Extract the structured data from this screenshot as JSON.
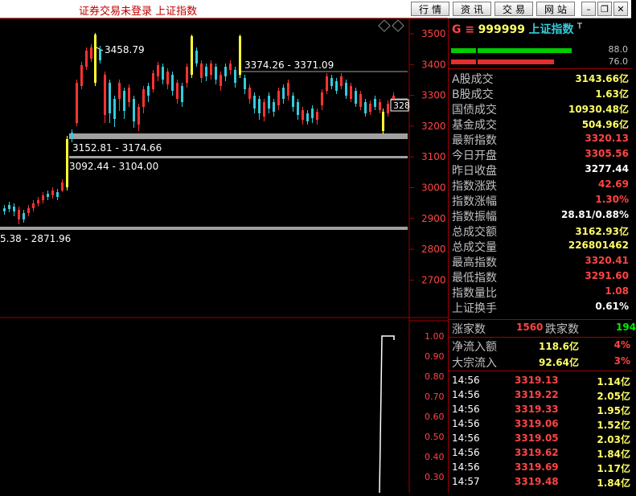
{
  "window": {
    "title": "证券交易未登录  上证指数",
    "buttons": [
      "行情",
      "资讯",
      "交易",
      "网站"
    ],
    "controls": [
      "minimize-icon",
      "restore-icon",
      "close-icon"
    ]
  },
  "chart": {
    "price_ticks": [
      "3500",
      "3400",
      "3300",
      "3200",
      "3100",
      "3000",
      "2900",
      "2800",
      "2700"
    ],
    "price_annotations": [
      "3458.79",
      "3374.26 - 3371.09",
      "3152.81 - 3174.66",
      "3092.44 - 3104.00",
      "5.38 - 2871.96"
    ],
    "current_price_label": "328",
    "indicator_ticks": [
      "1.00",
      "0.90",
      "0.80",
      "0.70",
      "0.60",
      "0.50",
      "0.40",
      "0.30"
    ],
    "colors": {
      "up": "#ff3333",
      "down": "#33ccdd",
      "highlight": "#ffff33",
      "band": "#a0a0a0",
      "axis": "#a00000"
    }
  },
  "quote": {
    "header_prefix": "G ≡",
    "code": "999999",
    "name": "上证指数",
    "tag": "T",
    "bar_values": [
      "88.0",
      "76.0"
    ],
    "stats": [
      {
        "label": "A股成交",
        "value": "3143.66亿",
        "color": "#ffff66"
      },
      {
        "label": "B股成交",
        "value": "1.63亿",
        "color": "#ffff66"
      },
      {
        "label": "国债成交",
        "value": "10930.48亿",
        "color": "#ffff66"
      },
      {
        "label": "基金成交",
        "value": "504.96亿",
        "color": "#ffff66"
      },
      {
        "label": "最新指数",
        "value": "3320.13",
        "color": "#ff4444"
      },
      {
        "label": "今日开盘",
        "value": "3305.56",
        "color": "#ff4444"
      },
      {
        "label": "昨日收盘",
        "value": "3277.44",
        "color": "#ffffff"
      },
      {
        "label": "指数涨跌",
        "value": "42.69",
        "color": "#ff4444"
      },
      {
        "label": "指数涨幅",
        "value": "1.30%",
        "color": "#ff4444"
      },
      {
        "label": "指数振幅",
        "value": "28.81/0.88%",
        "color": "#ffffff"
      },
      {
        "label": "总成交额",
        "value": "3162.93亿",
        "color": "#ffff66"
      },
      {
        "label": "总成交量",
        "value": "226801462",
        "color": "#ffff66"
      },
      {
        "label": "最高指数",
        "value": "3320.41",
        "color": "#ff4444"
      },
      {
        "label": "最低指数",
        "value": "3291.60",
        "color": "#ff4444"
      },
      {
        "label": "指数量比",
        "value": "1.08",
        "color": "#ff4444"
      },
      {
        "label": "上证换手",
        "value": "0.61%",
        "color": "#ffffff"
      }
    ],
    "breadth": {
      "up_label": "涨家数",
      "up_value": "1560",
      "down_label": "跌家数",
      "down_value": "194"
    },
    "flows": [
      {
        "label": "净流入额",
        "value": "118.6亿",
        "pct": "4%"
      },
      {
        "label": "大宗流入",
        "value": "92.64亿",
        "pct": "3%"
      }
    ],
    "ticks": [
      {
        "time": "14:56",
        "price": "3319.13",
        "vol": "1.14亿"
      },
      {
        "time": "14:56",
        "price": "3319.22",
        "vol": "2.05亿"
      },
      {
        "time": "14:56",
        "price": "3319.33",
        "vol": "1.95亿"
      },
      {
        "time": "14:56",
        "price": "3319.06",
        "vol": "1.52亿"
      },
      {
        "time": "14:56",
        "price": "3319.05",
        "vol": "2.03亿"
      },
      {
        "time": "14:56",
        "price": "3319.62",
        "vol": "1.84亿"
      },
      {
        "time": "14:56",
        "price": "3319.69",
        "vol": "1.17亿"
      },
      {
        "time": "14:57",
        "price": "3319.48",
        "vol": "1.84亿"
      }
    ]
  }
}
